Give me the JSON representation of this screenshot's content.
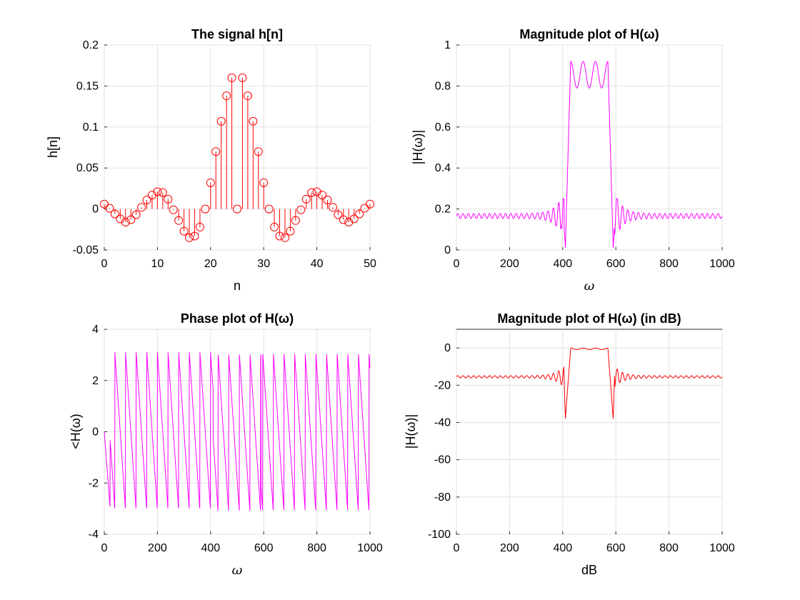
{
  "chart_data": [
    {
      "type": "stem",
      "title": "The signal h[n]",
      "xlabel": "n",
      "ylabel": "h[n]",
      "xlim": [
        0,
        50
      ],
      "ylim": [
        -0.05,
        0.2
      ],
      "xticks": [
        "0",
        "10",
        "20",
        "30",
        "40",
        "50"
      ],
      "yticks": [
        "-0.05",
        "0",
        "0.05",
        "0.1",
        "0.15",
        "0.2"
      ],
      "grid": true,
      "color": "#ff0000",
      "x": [
        0,
        1,
        2,
        3,
        4,
        5,
        6,
        7,
        8,
        9,
        10,
        11,
        12,
        13,
        14,
        15,
        16,
        17,
        18,
        19,
        20,
        21,
        22,
        23,
        24,
        25,
        26,
        27,
        28,
        29,
        30,
        31,
        32,
        33,
        34,
        35,
        36,
        37,
        38,
        39,
        40,
        41,
        42,
        43,
        44,
        45,
        46,
        47,
        48,
        49,
        50
      ],
      "values": [
        0.006,
        0.001,
        -0.006,
        -0.012,
        -0.016,
        -0.013,
        -0.007,
        0.002,
        0.011,
        0.017,
        0.021,
        0.02,
        0.012,
        -0.001,
        -0.014,
        -0.027,
        -0.035,
        -0.033,
        -0.022,
        0.0,
        0.032,
        0.07,
        0.107,
        0.138,
        0.16,
        0.0,
        0.16,
        0.138,
        0.107,
        0.07,
        0.032,
        0.0,
        -0.022,
        -0.033,
        -0.035,
        -0.027,
        -0.014,
        -0.001,
        0.012,
        0.02,
        0.021,
        0.017,
        0.011,
        0.002,
        -0.007,
        -0.013,
        -0.016,
        -0.012,
        -0.006,
        0.001,
        0.006
      ]
    },
    {
      "type": "line",
      "title": "Magnitude plot of H(ω)",
      "xlabel": "ω",
      "ylabel": "|H(ω)|",
      "xlim": [
        0,
        1000
      ],
      "ylim": [
        0,
        1
      ],
      "xticks": [
        "0",
        "200",
        "400",
        "600",
        "800",
        "1000"
      ],
      "yticks": [
        "0",
        "0.2",
        "0.4",
        "0.6",
        "0.8",
        "1"
      ],
      "grid": true,
      "color": "#ff00ff",
      "shape": {
        "passband": [
          430,
          570
        ],
        "passband_peaks": [
          0.92,
          0.87,
          0.87,
          0.92
        ],
        "passband_dips": [
          0.79,
          0.79,
          0.78
        ],
        "null_points": [
          410,
          590
        ],
        "stopband_mean": 0.166,
        "sidelobe_peaks": [
          0.25,
          0.25
        ]
      }
    },
    {
      "type": "line",
      "title": "Phase plot of H(ω)",
      "xlabel": "ω",
      "ylabel": "<H(ω)",
      "xlim": [
        0,
        1000
      ],
      "ylim": [
        -4,
        4
      ],
      "xticks": [
        "0",
        "200",
        "400",
        "600",
        "800",
        "1000"
      ],
      "yticks": [
        "-4",
        "-2",
        "0",
        "2",
        "4"
      ],
      "grid": true,
      "color": "#ff00ff",
      "shape": {
        "wrap_period": 40,
        "max_value": 3.1,
        "min_value": -3.1,
        "discontinuities": [
          410,
          590
        ]
      }
    },
    {
      "type": "line",
      "title": "Magnitude plot of H(ω) (in dB)",
      "xlabel": "dB",
      "ylabel": "|H(ω)|",
      "xlim": [
        0,
        1000
      ],
      "ylim": [
        -100,
        10
      ],
      "xticks": [
        "0",
        "200",
        "400",
        "600",
        "800",
        "1000"
      ],
      "yticks": [
        "-100",
        "-80",
        "-60",
        "-40",
        "-20",
        "0"
      ],
      "grid": true,
      "color": "#ff0000",
      "shape": {
        "passband": [
          430,
          570
        ],
        "passband_level": -0.5,
        "stopband_level": -15.5,
        "null_points": [
          410,
          590
        ],
        "null_depth": -38
      }
    }
  ]
}
